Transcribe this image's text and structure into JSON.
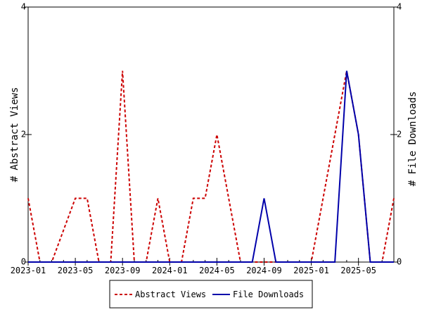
{
  "chart_data": {
    "type": "line",
    "title": "",
    "xlabel": "",
    "ylabel_left": "# Abstract Views",
    "ylabel_right": "# File Downloads",
    "x_tick_labels": [
      "2023-01",
      "2023-05",
      "2023-09",
      "2024-01",
      "2024-05",
      "2024-09",
      "2025-01",
      "2025-05"
    ],
    "y_ticks_left": [
      "0",
      "2",
      "4"
    ],
    "y_ticks_right": [
      "0",
      "2",
      "4"
    ],
    "ylim": [
      0,
      4
    ],
    "xlim": [
      "2023-01",
      "2025-08"
    ],
    "grid": false,
    "legend_position": "bottom-center",
    "categories": [
      "2023-01",
      "2023-02",
      "2023-03",
      "2023-04",
      "2023-05",
      "2023-06",
      "2023-07",
      "2023-08",
      "2023-09",
      "2023-10",
      "2023-11",
      "2023-12",
      "2024-01",
      "2024-02",
      "2024-03",
      "2024-04",
      "2024-05",
      "2024-06",
      "2024-07",
      "2024-08",
      "2024-09",
      "2024-10",
      "2024-11",
      "2024-12",
      "2025-01",
      "2025-02",
      "2025-03",
      "2025-04",
      "2025-05",
      "2025-06",
      "2025-07",
      "2025-08"
    ],
    "series": [
      {
        "name": "Abstract Views",
        "color": "#cc0000",
        "dash": "dashed",
        "values": [
          1,
          0,
          0,
          0.5,
          1,
          1,
          0,
          0,
          3,
          0,
          0,
          1,
          0,
          0,
          1,
          1,
          2,
          1,
          0,
          0,
          0,
          0,
          0,
          0,
          0,
          1,
          2,
          3,
          2,
          0,
          0,
          1
        ]
      },
      {
        "name": "File Downloads",
        "color": "#0000aa",
        "dash": "solid",
        "values": [
          0,
          0,
          0,
          0,
          0,
          0,
          0,
          0,
          0,
          0,
          0,
          0,
          0,
          0,
          0,
          0,
          0,
          0,
          0,
          0,
          1,
          0,
          0,
          0,
          0,
          0,
          0,
          3,
          2,
          0,
          0,
          0
        ]
      }
    ]
  }
}
